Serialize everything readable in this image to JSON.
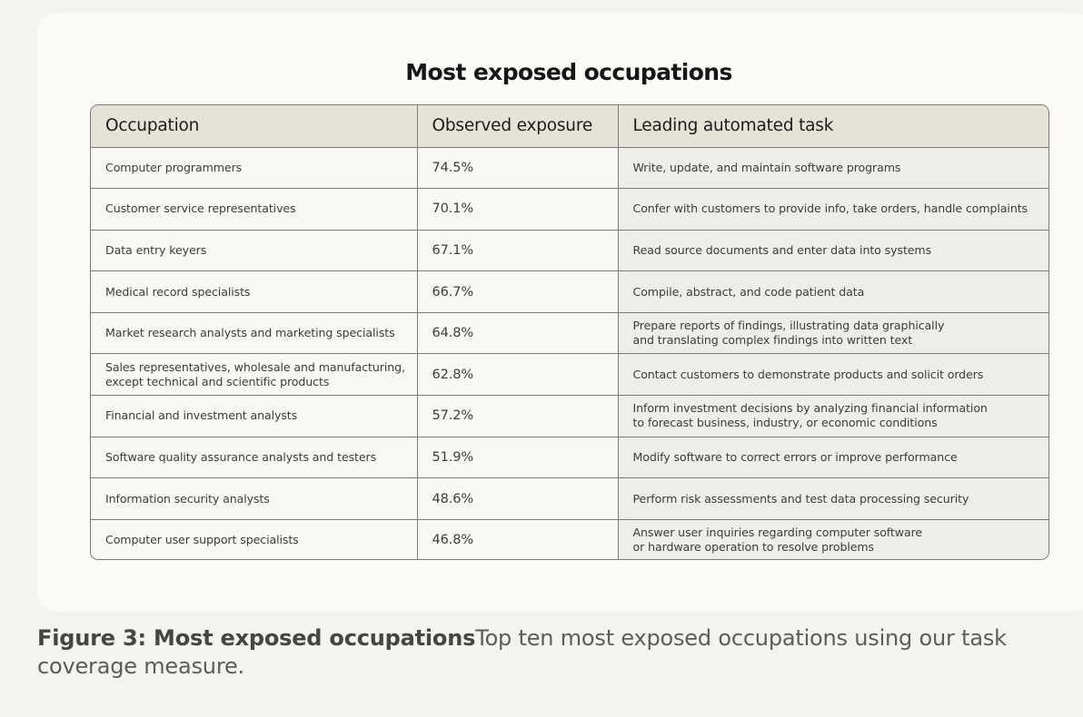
{
  "figure": {
    "title": "Most exposed occupations",
    "caption_label": "Figure 3: Most exposed occupations",
    "caption_text": "Top ten most exposed occupations using our task coverage measure."
  },
  "table": {
    "headers": [
      "Occupation",
      "Observed exposure",
      "Leading automated task"
    ],
    "rows": [
      {
        "occupation": "Computer programmers",
        "exposure": "74.5%",
        "task": "Write, update, and maintain software programs"
      },
      {
        "occupation": "Customer service representatives",
        "exposure": "70.1%",
        "task": "Confer with customers to provide info, take orders, handle complaints"
      },
      {
        "occupation": "Data entry keyers",
        "exposure": "67.1%",
        "task": "Read source documents and enter data into systems"
      },
      {
        "occupation": "Medical record specialists",
        "exposure": "66.7%",
        "task": "Compile, abstract, and code patient data"
      },
      {
        "occupation": "Market research analysts and marketing specialists",
        "exposure": "64.8%",
        "task": "Prepare reports of findings, illustrating data graphically\nand translating complex findings into written text"
      },
      {
        "occupation": "Sales representatives, wholesale and manufacturing,\nexcept technical and scientific products",
        "exposure": "62.8%",
        "task": "Contact customers to demonstrate products and solicit orders"
      },
      {
        "occupation": "Financial and investment analysts",
        "exposure": "57.2%",
        "task": "Inform investment decisions by analyzing financial information\nto forecast business, industry, or economic conditions"
      },
      {
        "occupation": "Software quality assurance analysts and testers",
        "exposure": "51.9%",
        "task": "Modify software to correct errors or improve performance"
      },
      {
        "occupation": "Information security analysts",
        "exposure": "48.6%",
        "task": "Perform risk assessments and test data processing security"
      },
      {
        "occupation": "Computer user support specialists",
        "exposure": "46.8%",
        "task": "Answer user inquiries regarding computer software\nor hardware operation to resolve problems"
      }
    ]
  },
  "colors": {
    "page_background": "#f5f3ee",
    "card_background": "#fbfaf7",
    "header_background": "#e5e2d8",
    "task_column_background": "#efede7",
    "grid_lines": "#7c7b77"
  }
}
